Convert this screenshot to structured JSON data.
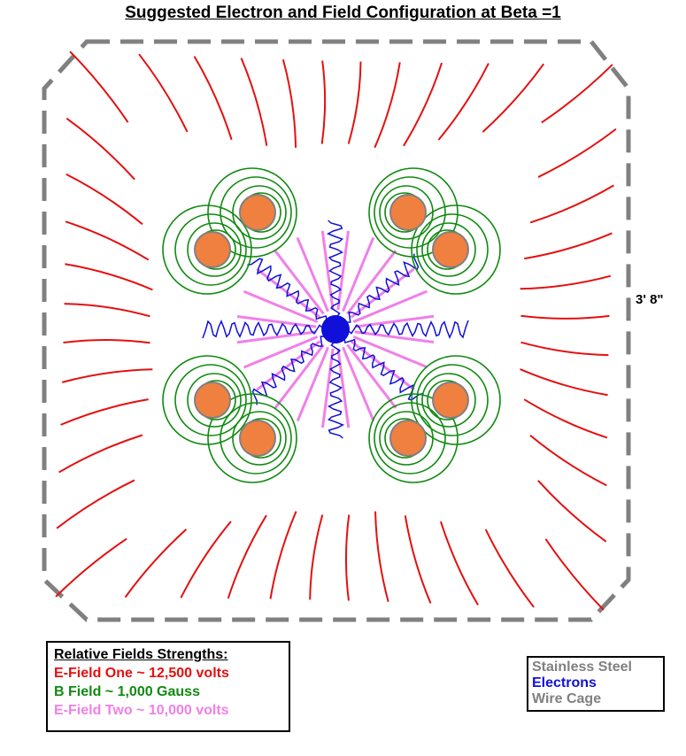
{
  "title": "Suggested Electron and Field Configuration at Beta =1",
  "dimension_label": "3' 8\"",
  "field_legend": {
    "heading": "Relative Fields Strengths:",
    "items": [
      {
        "label": "E-Field One ~ 12,500 volts",
        "color": "#e41010"
      },
      {
        "label": "B Field ~ 1,000 Gauss",
        "color": "#108a10"
      },
      {
        "label": "E-Field Two ~ 10,000 volts",
        "color": "#f080e8"
      }
    ]
  },
  "material_legend": {
    "items": [
      {
        "label": "Stainless Steel",
        "color": "#808080"
      },
      {
        "label": "Electrons",
        "color": "#1010d8"
      },
      {
        "label": "Wire Cage",
        "color": "#808080"
      }
    ]
  },
  "colors": {
    "efield_one": "#e41010",
    "bfield": "#108a10",
    "efield_two": "#f080e8",
    "electrons": "#1010d8",
    "cage": "#808080",
    "rod_fill": "#f08040",
    "rod_outline": "#808080"
  }
}
